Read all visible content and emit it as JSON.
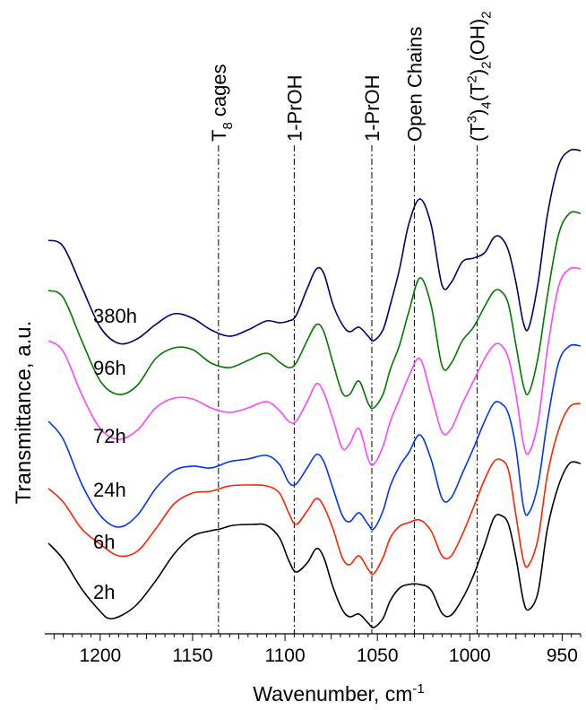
{
  "chart_data": {
    "type": "line",
    "xlabel": "Wavenumber, cm",
    "xlabel_superscript": "-1",
    "ylabel": "Transmittance, a.u.",
    "xlim": [
      1230,
      940
    ],
    "x_reversed": true,
    "x_ticks": [
      1200,
      1150,
      1100,
      1050,
      1000,
      950
    ],
    "y_ticks_shown": false,
    "grid": false,
    "legend": "none",
    "reference_lines": [
      {
        "x": 1136,
        "label": "T",
        "label_subscript": "8",
        "label_suffix": " cages"
      },
      {
        "x": 1095,
        "label": "1-PrOH"
      },
      {
        "x": 1053,
        "label": "1-PrOH"
      },
      {
        "x": 1030,
        "label": "Open Chains"
      },
      {
        "x": 996,
        "label": "(T",
        "parts": [
          "3",
          ")",
          "4",
          "(T",
          "2",
          ")",
          "2",
          "(OH)",
          "2"
        ]
      }
    ],
    "series": [
      {
        "name": "2h",
        "color": "#000000",
        "points": [
          [
            1228,
            606
          ],
          [
            1220,
            624
          ],
          [
            1210,
            657
          ],
          [
            1200,
            682
          ],
          [
            1195,
            690
          ],
          [
            1188,
            686
          ],
          [
            1180,
            674
          ],
          [
            1170,
            648
          ],
          [
            1160,
            618
          ],
          [
            1150,
            598
          ],
          [
            1140,
            592
          ],
          [
            1135,
            590
          ],
          [
            1128,
            586
          ],
          [
            1118,
            585
          ],
          [
            1110,
            586
          ],
          [
            1103,
            600
          ],
          [
            1098,
            625
          ],
          [
            1094,
            638
          ],
          [
            1088,
            628
          ],
          [
            1083,
            612
          ],
          [
            1079,
            622
          ],
          [
            1074,
            655
          ],
          [
            1069,
            680
          ],
          [
            1065,
            688
          ],
          [
            1060,
            685
          ],
          [
            1055,
            695
          ],
          [
            1052,
            700
          ],
          [
            1047,
            690
          ],
          [
            1043,
            670
          ],
          [
            1038,
            656
          ],
          [
            1033,
            652
          ],
          [
            1027,
            652
          ],
          [
            1021,
            658
          ],
          [
            1015,
            684
          ],
          [
            1010,
            686
          ],
          [
            1004,
            668
          ],
          [
            998,
            642
          ],
          [
            992,
            608
          ],
          [
            987,
            578
          ],
          [
            983,
            575
          ],
          [
            979,
            585
          ],
          [
            975,
            622
          ],
          [
            971,
            670
          ],
          [
            968,
            680
          ],
          [
            963,
            660
          ],
          [
            958,
            590
          ],
          [
            952,
            542
          ],
          [
            946,
            517
          ],
          [
            940,
            517
          ]
        ]
      },
      {
        "name": "6h",
        "color": "#ff2200",
        "points": [
          [
            1228,
            545
          ],
          [
            1220,
            560
          ],
          [
            1210,
            590
          ],
          [
            1200,
            607
          ],
          [
            1190,
            620
          ],
          [
            1180,
            615
          ],
          [
            1170,
            590
          ],
          [
            1160,
            562
          ],
          [
            1150,
            550
          ],
          [
            1140,
            548
          ],
          [
            1130,
            542
          ],
          [
            1120,
            541
          ],
          [
            1110,
            542
          ],
          [
            1103,
            550
          ],
          [
            1098,
            572
          ],
          [
            1094,
            585
          ],
          [
            1088,
            570
          ],
          [
            1083,
            556
          ],
          [
            1079,
            565
          ],
          [
            1074,
            590
          ],
          [
            1069,
            622
          ],
          [
            1065,
            630
          ],
          [
            1060,
            620
          ],
          [
            1055,
            635
          ],
          [
            1052,
            640
          ],
          [
            1047,
            622
          ],
          [
            1043,
            600
          ],
          [
            1038,
            587
          ],
          [
            1033,
            583
          ],
          [
            1027,
            580
          ],
          [
            1021,
            592
          ],
          [
            1015,
            620
          ],
          [
            1010,
            620
          ],
          [
            1004,
            596
          ],
          [
            998,
            566
          ],
          [
            992,
            535
          ],
          [
            987,
            515
          ],
          [
            983,
            513
          ],
          [
            979,
            525
          ],
          [
            975,
            575
          ],
          [
            971,
            625
          ],
          [
            968,
            630
          ],
          [
            963,
            600
          ],
          [
            958,
            530
          ],
          [
            952,
            480
          ],
          [
            946,
            454
          ],
          [
            940,
            450
          ]
        ]
      },
      {
        "name": "24h",
        "color": "#0033ff",
        "points": [
          [
            1228,
            470
          ],
          [
            1220,
            490
          ],
          [
            1210,
            540
          ],
          [
            1200,
            575
          ],
          [
            1190,
            588
          ],
          [
            1180,
            575
          ],
          [
            1170,
            545
          ],
          [
            1160,
            525
          ],
          [
            1150,
            520
          ],
          [
            1140,
            522
          ],
          [
            1130,
            515
          ],
          [
            1120,
            512
          ],
          [
            1110,
            508
          ],
          [
            1103,
            518
          ],
          [
            1098,
            538
          ],
          [
            1094,
            540
          ],
          [
            1088,
            522
          ],
          [
            1083,
            507
          ],
          [
            1079,
            515
          ],
          [
            1074,
            545
          ],
          [
            1069,
            575
          ],
          [
            1065,
            582
          ],
          [
            1060,
            572
          ],
          [
            1055,
            585
          ],
          [
            1052,
            590
          ],
          [
            1047,
            570
          ],
          [
            1043,
            542
          ],
          [
            1038,
            520
          ],
          [
            1033,
            505
          ],
          [
            1027,
            485
          ],
          [
            1021,
            512
          ],
          [
            1015,
            556
          ],
          [
            1010,
            555
          ],
          [
            1004,
            528
          ],
          [
            998,
            500
          ],
          [
            992,
            470
          ],
          [
            987,
            450
          ],
          [
            983,
            450
          ],
          [
            979,
            462
          ],
          [
            975,
            500
          ],
          [
            971,
            565
          ],
          [
            968,
            572
          ],
          [
            963,
            540
          ],
          [
            958,
            470
          ],
          [
            952,
            405
          ],
          [
            946,
            386
          ],
          [
            940,
            386
          ]
        ]
      },
      {
        "name": "72h",
        "color": "#ff44ff",
        "points": [
          [
            1228,
            380
          ],
          [
            1220,
            392
          ],
          [
            1210,
            440
          ],
          [
            1200,
            478
          ],
          [
            1190,
            490
          ],
          [
            1180,
            480
          ],
          [
            1170,
            455
          ],
          [
            1160,
            444
          ],
          [
            1150,
            445
          ],
          [
            1140,
            455
          ],
          [
            1130,
            460
          ],
          [
            1120,
            455
          ],
          [
            1110,
            448
          ],
          [
            1103,
            458
          ],
          [
            1098,
            470
          ],
          [
            1094,
            470
          ],
          [
            1088,
            448
          ],
          [
            1083,
            428
          ],
          [
            1079,
            438
          ],
          [
            1074,
            468
          ],
          [
            1069,
            500
          ],
          [
            1065,
            495
          ],
          [
            1060,
            478
          ],
          [
            1055,
            512
          ],
          [
            1052,
            518
          ],
          [
            1047,
            498
          ],
          [
            1043,
            470
          ],
          [
            1038,
            445
          ],
          [
            1033,
            420
          ],
          [
            1027,
            400
          ],
          [
            1021,
            440
          ],
          [
            1015,
            482
          ],
          [
            1010,
            478
          ],
          [
            1004,
            450
          ],
          [
            998,
            425
          ],
          [
            992,
            400
          ],
          [
            987,
            385
          ],
          [
            983,
            385
          ],
          [
            979,
            400
          ],
          [
            975,
            440
          ],
          [
            971,
            495
          ],
          [
            968,
            505
          ],
          [
            963,
            470
          ],
          [
            958,
            390
          ],
          [
            952,
            320
          ],
          [
            946,
            300
          ],
          [
            940,
            300
          ]
        ]
      },
      {
        "name": "96h",
        "color": "#007700",
        "points": [
          [
            1228,
            324
          ],
          [
            1220,
            332
          ],
          [
            1210,
            380
          ],
          [
            1200,
            425
          ],
          [
            1190,
            440
          ],
          [
            1180,
            430
          ],
          [
            1170,
            400
          ],
          [
            1160,
            388
          ],
          [
            1150,
            390
          ],
          [
            1140,
            405
          ],
          [
            1130,
            410
          ],
          [
            1120,
            402
          ],
          [
            1110,
            394
          ],
          [
            1103,
            404
          ],
          [
            1098,
            410
          ],
          [
            1094,
            405
          ],
          [
            1088,
            380
          ],
          [
            1083,
            362
          ],
          [
            1079,
            370
          ],
          [
            1074,
            405
          ],
          [
            1069,
            438
          ],
          [
            1065,
            440
          ],
          [
            1060,
            425
          ],
          [
            1055,
            450
          ],
          [
            1052,
            455
          ],
          [
            1047,
            440
          ],
          [
            1043,
            412
          ],
          [
            1038,
            385
          ],
          [
            1033,
            348
          ],
          [
            1027,
            310
          ],
          [
            1021,
            340
          ],
          [
            1015,
            408
          ],
          [
            1010,
            405
          ],
          [
            1004,
            380
          ],
          [
            998,
            365
          ],
          [
            992,
            342
          ],
          [
            987,
            325
          ],
          [
            983,
            325
          ],
          [
            979,
            340
          ],
          [
            975,
            385
          ],
          [
            971,
            430
          ],
          [
            968,
            438
          ],
          [
            963,
            398
          ],
          [
            958,
            330
          ],
          [
            952,
            262
          ],
          [
            946,
            238
          ],
          [
            940,
            238
          ]
        ]
      },
      {
        "name": "380h",
        "color": "#000066",
        "points": [
          [
            1228,
            268
          ],
          [
            1220,
            275
          ],
          [
            1210,
            320
          ],
          [
            1200,
            365
          ],
          [
            1190,
            383
          ],
          [
            1180,
            378
          ],
          [
            1170,
            362
          ],
          [
            1160,
            350
          ],
          [
            1150,
            355
          ],
          [
            1140,
            368
          ],
          [
            1130,
            375
          ],
          [
            1120,
            368
          ],
          [
            1110,
            358
          ],
          [
            1103,
            360
          ],
          [
            1098,
            358
          ],
          [
            1094,
            352
          ],
          [
            1088,
            322
          ],
          [
            1083,
            300
          ],
          [
            1079,
            305
          ],
          [
            1074,
            340
          ],
          [
            1069,
            362
          ],
          [
            1065,
            370
          ],
          [
            1060,
            365
          ],
          [
            1055,
            375
          ],
          [
            1052,
            380
          ],
          [
            1047,
            368
          ],
          [
            1043,
            340
          ],
          [
            1038,
            300
          ],
          [
            1033,
            250
          ],
          [
            1027,
            222
          ],
          [
            1021,
            250
          ],
          [
            1015,
            318
          ],
          [
            1010,
            315
          ],
          [
            1004,
            292
          ],
          [
            998,
            288
          ],
          [
            992,
            282
          ],
          [
            987,
            265
          ],
          [
            983,
            265
          ],
          [
            979,
            280
          ],
          [
            975,
            315
          ],
          [
            971,
            360
          ],
          [
            968,
            365
          ],
          [
            963,
            315
          ],
          [
            958,
            240
          ],
          [
            952,
            185
          ],
          [
            946,
            168
          ],
          [
            940,
            168
          ]
        ]
      }
    ]
  }
}
